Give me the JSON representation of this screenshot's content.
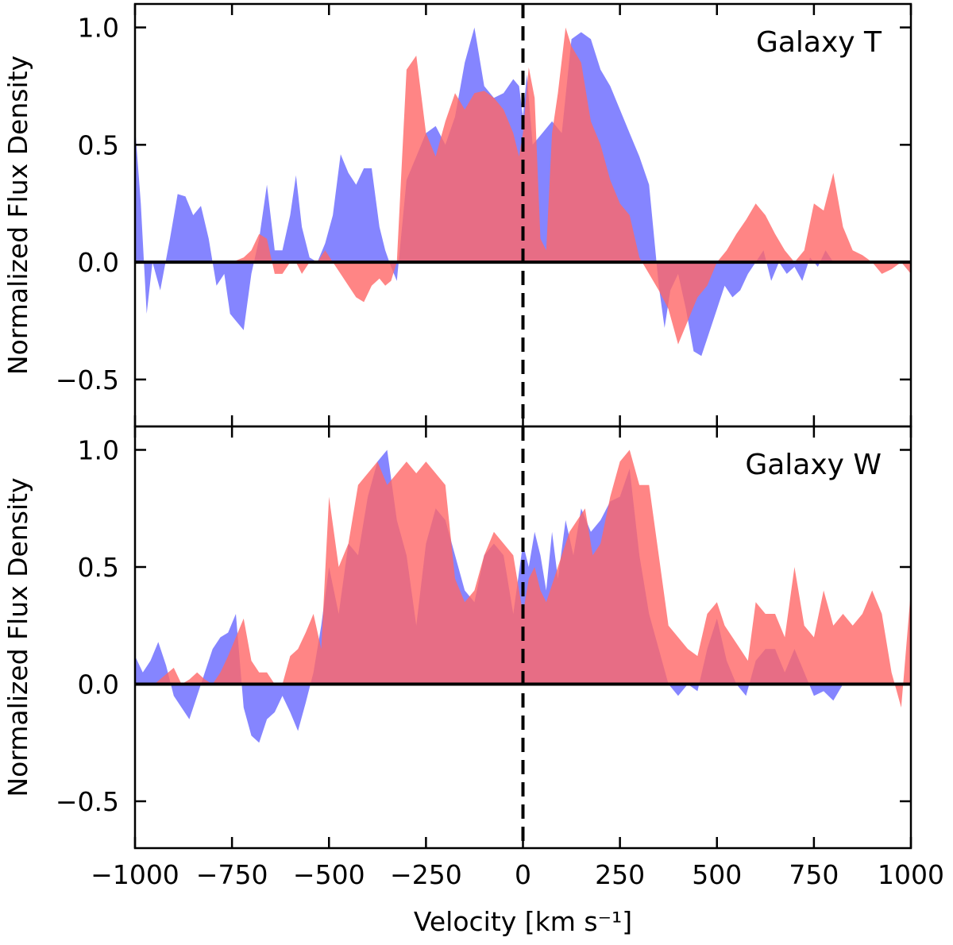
{
  "chart_data": [
    {
      "type": "area",
      "label": "Galaxy T",
      "xlabel": "Velocity [km s⁻¹]",
      "ylabel": "Normalized Flux Density",
      "xlim": [
        -1000,
        1000
      ],
      "ylim": [
        -0.7,
        1.1
      ],
      "yticks": [
        -0.5,
        0.0,
        0.5,
        1.0
      ],
      "ytick_labels": [
        "−0.5",
        "0.0",
        "0.5",
        "1.0"
      ],
      "vline_x": 0,
      "series": [
        {
          "name": "blue",
          "color": "#6666ff",
          "x": [
            -1000,
            -985,
            -970,
            -955,
            -935,
            -910,
            -890,
            -870,
            -850,
            -830,
            -810,
            -790,
            -770,
            -755,
            -740,
            -720,
            -700,
            -680,
            -660,
            -640,
            -620,
            -600,
            -585,
            -570,
            -550,
            -530,
            -510,
            -490,
            -470,
            -450,
            -430,
            -410,
            -390,
            -370,
            -355,
            -340,
            -325,
            -300,
            -275,
            -250,
            -225,
            -200,
            -175,
            -150,
            -125,
            -100,
            -75,
            -50,
            -25,
            -10,
            0,
            10,
            25,
            50,
            75,
            100,
            125,
            150,
            175,
            200,
            225,
            250,
            275,
            300,
            325,
            350,
            365,
            380,
            400,
            420,
            440,
            460,
            480,
            500,
            520,
            540,
            560,
            580,
            600,
            620,
            640,
            660,
            680,
            700,
            720,
            740,
            760,
            780,
            800,
            850,
            900,
            950,
            1000
          ],
          "y": [
            0.58,
            0.25,
            -0.22,
            0.0,
            -0.12,
            0.1,
            0.29,
            0.28,
            0.2,
            0.24,
            0.1,
            -0.1,
            -0.05,
            -0.22,
            -0.25,
            -0.29,
            -0.05,
            0.1,
            0.33,
            0.05,
            0.05,
            0.2,
            0.37,
            0.15,
            0.02,
            0.0,
            0.08,
            0.2,
            0.46,
            0.38,
            0.33,
            0.4,
            0.4,
            0.15,
            0.05,
            -0.02,
            -0.08,
            0.35,
            0.45,
            0.55,
            0.58,
            0.5,
            0.62,
            0.85,
            1.0,
            0.75,
            0.7,
            0.72,
            0.78,
            0.75,
            0.62,
            0.8,
            0.5,
            0.55,
            0.6,
            0.55,
            0.95,
            0.98,
            0.95,
            0.82,
            0.75,
            0.65,
            0.55,
            0.45,
            0.33,
            -0.1,
            -0.28,
            -0.12,
            -0.05,
            -0.2,
            -0.38,
            -0.4,
            -0.3,
            -0.2,
            -0.1,
            -0.15,
            -0.12,
            -0.05,
            0.0,
            0.05,
            -0.08,
            0.0,
            -0.05,
            -0.02,
            -0.08,
            0.02,
            -0.02,
            0.05,
            0.0,
            0.0,
            0.0,
            0.0,
            0.0
          ]
        },
        {
          "name": "red",
          "color": "#ff6666",
          "x": [
            -1000,
            -950,
            -900,
            -850,
            -800,
            -750,
            -720,
            -700,
            -680,
            -660,
            -640,
            -620,
            -600,
            -585,
            -570,
            -550,
            -530,
            -510,
            -490,
            -470,
            -450,
            -430,
            -410,
            -390,
            -370,
            -355,
            -340,
            -325,
            -300,
            -275,
            -250,
            -225,
            -200,
            -175,
            -150,
            -125,
            -100,
            -75,
            -50,
            -25,
            -10,
            0,
            15,
            30,
            45,
            60,
            75,
            90,
            110,
            125,
            150,
            175,
            200,
            225,
            250,
            275,
            300,
            325,
            350,
            375,
            400,
            425,
            450,
            475,
            500,
            525,
            550,
            575,
            600,
            625,
            650,
            675,
            700,
            725,
            750,
            775,
            800,
            825,
            850,
            875,
            900,
            925,
            950,
            975,
            1000
          ],
          "y": [
            0.0,
            0.0,
            0.0,
            0.0,
            0.0,
            0.0,
            0.02,
            0.05,
            0.12,
            0.1,
            -0.05,
            -0.05,
            0.0,
            0.0,
            -0.05,
            0.0,
            0.0,
            0.05,
            0.0,
            -0.05,
            -0.1,
            -0.15,
            -0.17,
            -0.1,
            -0.07,
            -0.1,
            -0.08,
            0.0,
            0.82,
            0.88,
            0.55,
            0.45,
            0.6,
            0.72,
            0.65,
            0.72,
            0.73,
            0.7,
            0.65,
            0.55,
            0.45,
            0.55,
            0.83,
            0.7,
            0.1,
            0.05,
            0.55,
            0.72,
            1.0,
            0.92,
            0.85,
            0.6,
            0.5,
            0.35,
            0.25,
            0.2,
            0.02,
            -0.05,
            -0.12,
            -0.2,
            -0.35,
            -0.25,
            -0.15,
            -0.1,
            0.0,
            0.05,
            0.12,
            0.18,
            0.25,
            0.2,
            0.12,
            0.05,
            0.0,
            0.05,
            0.25,
            0.22,
            0.38,
            0.15,
            0.05,
            0.03,
            0.0,
            -0.05,
            -0.03,
            0.0,
            -0.05
          ]
        }
      ]
    },
    {
      "type": "area",
      "label": "Galaxy W",
      "xlabel": "Velocity [km s⁻¹]",
      "ylabel": "Normalized Flux Density",
      "xlim": [
        -1000,
        1000
      ],
      "ylim": [
        -0.7,
        1.1
      ],
      "xticks": [
        -1000,
        -750,
        -500,
        -250,
        0,
        250,
        500,
        750,
        1000
      ],
      "xtick_labels": [
        "−1000",
        "−750",
        "−500",
        "−250",
        "0",
        "250",
        "500",
        "750",
        "1000"
      ],
      "yticks": [
        -0.5,
        0.0,
        0.5,
        1.0
      ],
      "ytick_labels": [
        "−0.5",
        "0.0",
        "0.5",
        "1.0"
      ],
      "vline_x": 0,
      "series": [
        {
          "name": "blue",
          "color": "#6666ff",
          "x": [
            -1000,
            -980,
            -960,
            -940,
            -920,
            -900,
            -880,
            -860,
            -840,
            -820,
            -800,
            -780,
            -760,
            -740,
            -720,
            -700,
            -680,
            -660,
            -640,
            -620,
            -600,
            -580,
            -560,
            -540,
            -520,
            -500,
            -475,
            -450,
            -425,
            -400,
            -375,
            -350,
            -325,
            -300,
            -275,
            -250,
            -225,
            -200,
            -175,
            -150,
            -125,
            -100,
            -75,
            -50,
            -25,
            0,
            15,
            30,
            45,
            60,
            75,
            90,
            110,
            130,
            150,
            175,
            200,
            225,
            250,
            275,
            300,
            325,
            350,
            375,
            400,
            425,
            450,
            475,
            500,
            525,
            550,
            575,
            600,
            625,
            650,
            675,
            700,
            725,
            750,
            775,
            800,
            825,
            850,
            875,
            900,
            950,
            1000
          ],
          "y": [
            0.12,
            0.05,
            0.1,
            0.18,
            0.08,
            -0.05,
            -0.1,
            -0.15,
            -0.05,
            0.05,
            0.15,
            0.2,
            0.22,
            0.3,
            -0.1,
            -0.22,
            -0.25,
            -0.15,
            -0.12,
            -0.05,
            -0.12,
            -0.2,
            -0.08,
            0.05,
            0.25,
            0.5,
            0.3,
            0.6,
            0.55,
            0.8,
            0.95,
            1.0,
            0.7,
            0.55,
            0.25,
            0.6,
            0.75,
            0.7,
            0.55,
            0.4,
            0.35,
            0.55,
            0.6,
            0.55,
            0.3,
            0.6,
            0.5,
            0.65,
            0.55,
            0.4,
            0.65,
            0.45,
            0.7,
            0.55,
            0.75,
            0.65,
            0.7,
            0.78,
            0.8,
            0.92,
            0.55,
            0.3,
            0.15,
            0.0,
            -0.05,
            0.0,
            -0.03,
            0.15,
            0.28,
            0.1,
            0.0,
            -0.05,
            0.1,
            0.15,
            0.15,
            0.05,
            0.15,
            0.05,
            -0.05,
            -0.03,
            -0.07,
            0.0,
            0.0,
            0.0,
            0.0,
            0.0,
            0.0
          ]
        },
        {
          "name": "red",
          "color": "#ff6666",
          "x": [
            -1000,
            -950,
            -900,
            -880,
            -860,
            -840,
            -820,
            -800,
            -780,
            -760,
            -740,
            -720,
            -700,
            -680,
            -660,
            -640,
            -620,
            -600,
            -580,
            -560,
            -540,
            -520,
            -500,
            -475,
            -450,
            -425,
            -400,
            -375,
            -350,
            -325,
            -300,
            -275,
            -250,
            -225,
            -200,
            -175,
            -150,
            -125,
            -100,
            -75,
            -50,
            -25,
            0,
            15,
            30,
            45,
            60,
            80,
            100,
            120,
            140,
            160,
            180,
            200,
            225,
            250,
            275,
            300,
            325,
            350,
            375,
            400,
            425,
            450,
            475,
            500,
            520,
            540,
            560,
            580,
            600,
            625,
            650,
            675,
            700,
            725,
            750,
            775,
            800,
            825,
            850,
            875,
            900,
            925,
            950,
            975,
            1000
          ],
          "y": [
            0.0,
            0.0,
            0.07,
            0.0,
            0.02,
            0.05,
            0.02,
            0.0,
            0.05,
            0.12,
            0.2,
            0.28,
            0.1,
            0.05,
            0.05,
            0.0,
            0.0,
            0.12,
            0.15,
            0.22,
            0.3,
            0.15,
            0.8,
            0.5,
            0.6,
            0.85,
            0.9,
            0.95,
            0.85,
            0.9,
            0.95,
            0.9,
            0.95,
            0.9,
            0.85,
            0.45,
            0.35,
            0.4,
            0.55,
            0.65,
            0.6,
            0.55,
            0.3,
            0.45,
            0.5,
            0.4,
            0.35,
            0.45,
            0.55,
            0.65,
            0.7,
            0.75,
            0.55,
            0.6,
            0.8,
            0.95,
            1.0,
            0.85,
            0.85,
            0.55,
            0.25,
            0.2,
            0.15,
            0.12,
            0.3,
            0.35,
            0.25,
            0.2,
            0.15,
            0.1,
            0.35,
            0.3,
            0.3,
            0.2,
            0.5,
            0.25,
            0.2,
            0.4,
            0.25,
            0.3,
            0.25,
            0.3,
            0.4,
            0.3,
            0.05,
            -0.1,
            0.4
          ]
        }
      ]
    }
  ]
}
